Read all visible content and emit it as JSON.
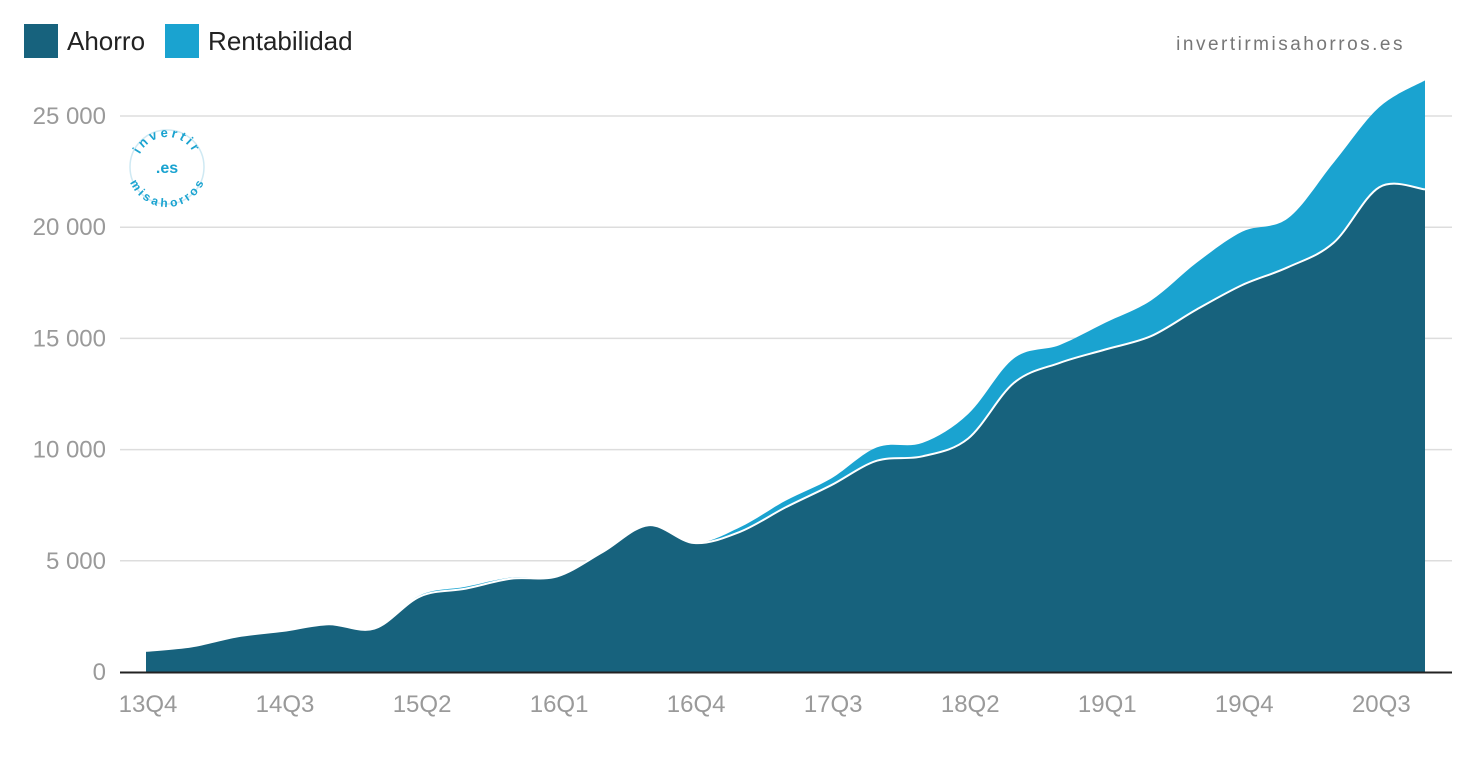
{
  "legend": [
    {
      "name": "Ahorro",
      "color": "#17627d"
    },
    {
      "name": "Rentabilidad",
      "color": "#1aa3d0"
    }
  ],
  "brand": "invertirmisahorros.es",
  "logo": {
    "top": "invertir",
    "middle": ".es",
    "bottom": "misahorros"
  },
  "colors": {
    "grid": "#dddddd",
    "axis": "#222222",
    "tick": "#9a9a9a",
    "divider": "#ffffff"
  },
  "chart_data": {
    "type": "area",
    "stacked": true,
    "x": [
      "13Q4",
      "14Q1",
      "14Q2",
      "14Q3",
      "14Q4",
      "15Q1",
      "15Q2",
      "15Q3",
      "15Q4",
      "16Q1",
      "16Q2",
      "16Q3",
      "16Q4",
      "17Q1",
      "17Q2",
      "17Q3",
      "17Q4",
      "18Q1",
      "18Q2",
      "18Q3",
      "18Q4",
      "19Q1",
      "19Q2",
      "19Q3",
      "19Q4",
      "20Q1",
      "20Q2",
      "20Q3",
      "20Q4"
    ],
    "xticks": [
      "13Q4",
      "14Q3",
      "15Q2",
      "16Q1",
      "16Q4",
      "17Q3",
      "18Q2",
      "19Q1",
      "19Q4",
      "20Q3"
    ],
    "yticks": [
      0,
      5000,
      10000,
      15000,
      20000,
      25000
    ],
    "ylim": [
      0,
      25000
    ],
    "ytick_labels": [
      "0",
      "5 000",
      "10 000",
      "15 000",
      "20 000",
      "25 000"
    ],
    "series": [
      {
        "name": "Ahorro",
        "values": [
          950,
          1150,
          1600,
          1850,
          2150,
          1950,
          3400,
          3750,
          4200,
          4300,
          5400,
          6600,
          5800,
          6300,
          7400,
          8400,
          9500,
          9700,
          10500,
          13000,
          13900,
          14500,
          15100,
          16300,
          17400,
          18200,
          19300,
          21800,
          21700
        ]
      },
      {
        "name": "Rentabilidad",
        "values": [
          0,
          0,
          0,
          0,
          0,
          0,
          50,
          80,
          50,
          0,
          0,
          0,
          0,
          200,
          300,
          300,
          600,
          600,
          1100,
          1100,
          800,
          1200,
          1600,
          2100,
          2400,
          2200,
          3600,
          3600,
          4900
        ]
      }
    ]
  }
}
